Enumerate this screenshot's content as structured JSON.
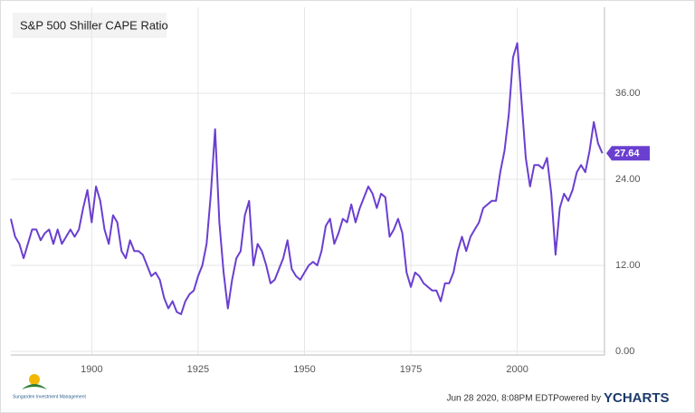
{
  "chart_data": {
    "type": "line",
    "title": "S&P 500 Shiller CAPE Ratio",
    "x": [
      1881,
      1882,
      1883,
      1884,
      1885,
      1886,
      1887,
      1888,
      1889,
      1890,
      1891,
      1892,
      1893,
      1894,
      1895,
      1896,
      1897,
      1898,
      1899,
      1900,
      1901,
      1902,
      1903,
      1904,
      1905,
      1906,
      1907,
      1908,
      1909,
      1910,
      1911,
      1912,
      1913,
      1914,
      1915,
      1916,
      1917,
      1918,
      1919,
      1920,
      1921,
      1922,
      1923,
      1924,
      1925,
      1926,
      1927,
      1928,
      1929,
      1930,
      1931,
      1932,
      1933,
      1934,
      1935,
      1936,
      1937,
      1938,
      1939,
      1940,
      1941,
      1942,
      1943,
      1944,
      1945,
      1946,
      1947,
      1948,
      1949,
      1950,
      1951,
      1952,
      1953,
      1954,
      1955,
      1956,
      1957,
      1958,
      1959,
      1960,
      1961,
      1962,
      1963,
      1964,
      1965,
      1966,
      1967,
      1968,
      1969,
      1970,
      1971,
      1972,
      1973,
      1974,
      1975,
      1976,
      1977,
      1978,
      1979,
      1980,
      1981,
      1982,
      1983,
      1984,
      1985,
      1986,
      1987,
      1988,
      1989,
      1990,
      1991,
      1992,
      1993,
      1994,
      1995,
      1996,
      1997,
      1998,
      1999,
      2000,
      2001,
      2002,
      2003,
      2004,
      2005,
      2006,
      2007,
      2008,
      2009,
      2010,
      2011,
      2012,
      2013,
      2014,
      2015,
      2016,
      2017,
      2018,
      2019,
      2020
    ],
    "series": [
      {
        "name": "S&P 500 Shiller CAPE Ratio",
        "color": "#6a3fd0",
        "values": [
          18.5,
          16,
          15,
          13,
          15,
          17,
          17,
          15.5,
          16.5,
          17,
          15,
          17,
          15,
          16,
          17,
          16,
          17,
          20,
          22.5,
          18,
          23,
          21,
          17,
          15,
          19,
          18,
          14,
          13,
          15.5,
          14,
          14,
          13.5,
          12,
          10.5,
          11,
          10,
          7.5,
          6,
          7,
          5.5,
          5.2,
          7,
          8,
          8.5,
          10.5,
          12,
          15,
          22,
          31,
          18,
          11,
          6,
          10,
          13,
          14,
          19,
          21,
          12,
          15,
          14,
          12,
          9.5,
          10,
          11.5,
          13,
          15.5,
          11.5,
          10.5,
          10,
          11,
          12,
          12.5,
          12,
          14,
          17.5,
          18.5,
          15,
          16.5,
          18.5,
          18,
          20.5,
          18,
          20,
          21.5,
          23,
          22,
          20,
          22,
          21.5,
          16,
          17,
          18.5,
          16.5,
          11,
          9,
          11,
          10.5,
          9.5,
          9,
          8.5,
          8.5,
          7,
          9.5,
          9.5,
          11,
          14,
          16,
          14,
          16,
          17,
          18,
          20,
          20.5,
          21,
          21,
          25,
          28,
          33,
          41,
          43,
          35,
          27,
          23,
          26,
          26,
          25.5,
          27,
          22,
          13.5,
          20,
          22,
          21,
          22.5,
          25,
          26,
          25,
          28,
          32,
          29,
          27.64
        ]
      }
    ],
    "xlim": [
      1881,
      2020.5
    ],
    "xticks": [
      1900,
      1925,
      1950,
      1975,
      2000
    ],
    "ylim": [
      -0.5,
      48
    ],
    "yticks": [
      {
        "value": 0,
        "label": "0.00"
      },
      {
        "value": 12,
        "label": "12.00"
      },
      {
        "value": 24,
        "label": "24.00"
      },
      {
        "value": 36,
        "label": "36.00"
      }
    ],
    "grid": true
  },
  "footer": {
    "logo_text": "Sungarden Investment Management",
    "timestamp": "Jun 28 2020, 8:08PM EDT.",
    "powered": "Powered by",
    "brand": "YCHARTS"
  }
}
